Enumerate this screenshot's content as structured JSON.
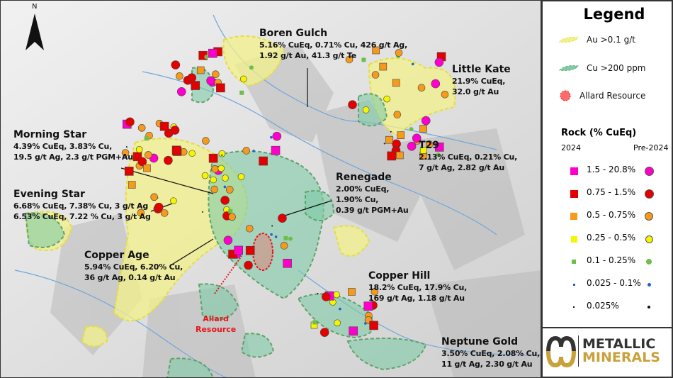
{
  "map": {
    "north_label": "N",
    "callouts": [
      {
        "id": "boren-gulch",
        "title": "Boren Gulch",
        "lines": [
          "5.16% CuEq, 0.71% Cu, 426 g/t Ag,",
          "1.92 g/t Au, 41.3 g/t Te"
        ]
      },
      {
        "id": "little-kate",
        "title": "Little Kate",
        "lines": [
          "21.9% CuEq,",
          "32.0 g/t Au"
        ]
      },
      {
        "id": "morning-star",
        "title": "Morning Star",
        "lines": [
          "4.39% CuEq, 3.83% Cu,",
          "19.5 g/t Ag, 2.3 g/t PGM+Au"
        ]
      },
      {
        "id": "evening-star",
        "title": "Evening Star",
        "lines": [
          "6.68% CuEq, 7.38% Cu, 3 g/t Ag",
          "6.53% CuEq, 7.22 % Cu, 3 g/t Ag"
        ]
      },
      {
        "id": "t29",
        "title": "T29",
        "lines": [
          "2.13% CuEq, 0.21% Cu,",
          "7 g/t Ag, 2.82 g/t Au"
        ]
      },
      {
        "id": "renegade",
        "title": "Renegade",
        "lines": [
          "2.00% CuEq,",
          "1.90% Cu,",
          "0.39 g/t PGM+Au"
        ]
      },
      {
        "id": "copper-age",
        "title": "Copper Age",
        "lines": [
          "5.94% CuEq, 6.20% Cu,",
          "36 g/t Ag, 0.14 g/t Au"
        ]
      },
      {
        "id": "copper-hill",
        "title": "Copper Hill",
        "lines": [
          "18.2% CuEq, 17.9% Cu,",
          "169 g/t Ag, 1.18 g/t Au"
        ]
      },
      {
        "id": "neptune-gold",
        "title": "Neptune Gold",
        "lines": [
          "3.50% CuEq, 2.08% Cu,",
          "11 g/t Ag, 2.30 g/t Au"
        ]
      }
    ],
    "allard_label": [
      "Allard",
      "Resource"
    ]
  },
  "legend": {
    "title": "Legend",
    "au": "Au >0.1 g/t",
    "cu": "Cu >200 ppm",
    "allard": "Allard Resource",
    "rock_title": "Rock (% CuEq)",
    "col_2024": "2024",
    "col_pre": "Pre-2024",
    "classes": [
      {
        "label": "1.5 - 20.8%",
        "color": "#ff00cc"
      },
      {
        "label": "0.75 - 1.5%",
        "color": "#e30000"
      },
      {
        "label": "0.5 - 0.75%",
        "color": "#f59a1b"
      },
      {
        "label": "0.25 - 0.5%",
        "color": "#f5f500"
      },
      {
        "label": "0.1 - 0.25%",
        "color": "#6cbf4b"
      },
      {
        "label": "0.025 - 0.1%",
        "color": "#1d5fd6"
      },
      {
        "label": "0.025%",
        "color": "#111111"
      }
    ],
    "colors": {
      "au_fill": "#f3f08a",
      "cu_fill": "#7ecba6",
      "allard": "#ff5a5a"
    }
  },
  "logo": {
    "line1": "METALLIC",
    "line2": "MINERALS"
  }
}
